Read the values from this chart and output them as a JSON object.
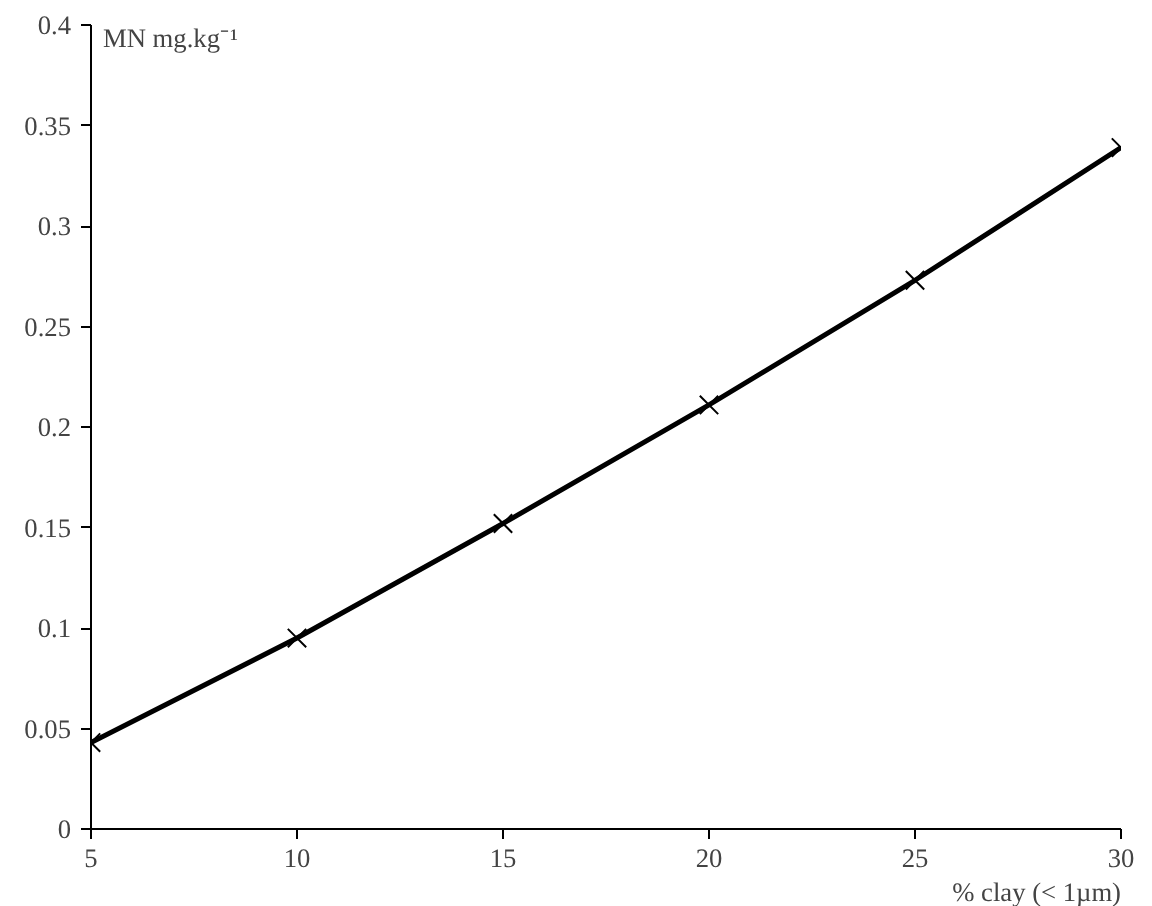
{
  "chart_data": {
    "type": "line",
    "xlabel": "% clay (< 1µm)",
    "ylabel": "MN mg.kg⁻¹",
    "x": [
      5,
      10,
      15,
      20,
      25,
      30
    ],
    "series": [
      {
        "color": "#000000",
        "values": [
          0.043,
          0.095,
          0.152,
          0.211,
          0.273,
          0.339
        ]
      }
    ],
    "xlim": [
      5,
      30
    ],
    "xticks": [
      5,
      10,
      15,
      20,
      25,
      30
    ],
    "ylim": [
      0,
      0.4
    ],
    "yticks": [
      0,
      0.05,
      0.1,
      0.15,
      0.2,
      0.25,
      0.3,
      0.35,
      0.4
    ],
    "grid": false,
    "marker": "cross",
    "line_style": "solid"
  }
}
